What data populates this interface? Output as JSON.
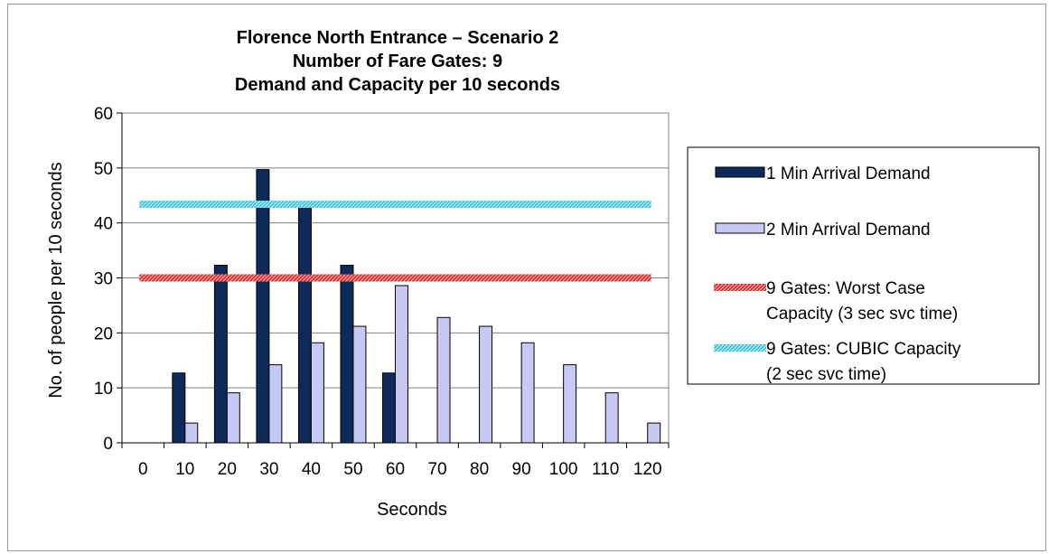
{
  "chart_data": {
    "type": "bar",
    "title_lines": [
      "Florence North Entrance – Scenario 2",
      "Number of Fare Gates: 9",
      "Demand and Capacity per 10 seconds"
    ],
    "xlabel": "Seconds",
    "ylabel": "No. of people per 10 seconds",
    "ylim": [
      0,
      60
    ],
    "yticks": [
      0,
      10,
      20,
      30,
      40,
      50,
      60
    ],
    "categories": [
      "0",
      "10",
      "20",
      "30",
      "40",
      "50",
      "60",
      "70",
      "80",
      "90",
      "100",
      "110",
      "120"
    ],
    "series": [
      {
        "name": "1 Min Arrival Demand",
        "type": "bar",
        "color": "#0d2a5a",
        "values": [
          0,
          12.7,
          32.3,
          49.7,
          43.8,
          32.3,
          12.7,
          0,
          0,
          0,
          0,
          0,
          0
        ]
      },
      {
        "name": "2 Min Arrival Demand",
        "type": "bar",
        "color": "#c8c8f4",
        "values": [
          0,
          3.6,
          9.1,
          14.2,
          18.2,
          21.2,
          28.6,
          22.8,
          21.2,
          18.2,
          14.2,
          9.1,
          3.6
        ]
      },
      {
        "name_lines": [
          "9 Gates: Worst Case",
          "Capacity (3 sec svc time)"
        ],
        "type": "line",
        "color": "#e23a3a",
        "value": 30
      },
      {
        "name_lines": [
          "9 Gates: CUBIC Capacity",
          "(2 sec svc time)"
        ],
        "type": "line",
        "color": "#3cc8dc",
        "value": 43.4
      }
    ],
    "grid": true,
    "legend_position": "right"
  }
}
